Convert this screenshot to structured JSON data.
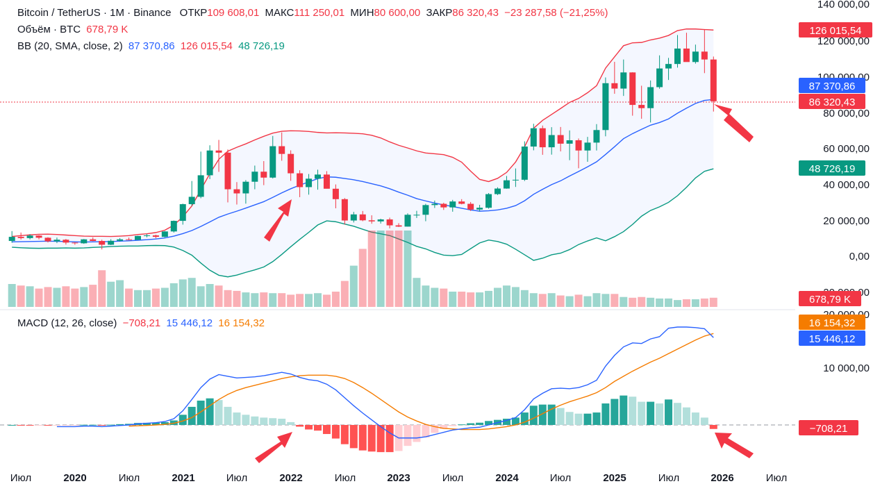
{
  "header": {
    "symbol": "Bitcoin / TetherUS · 1M · Binance",
    "open_label": "ОТКР",
    "open": "109 608,01",
    "high_label": "МАКС",
    "high": "111 250,01",
    "low_label": "МИН",
    "low": "80 600,00",
    "close_label": "ЗАКР",
    "close": "86 320,43",
    "change": "−23 287,58 (−21,25%)"
  },
  "volume_legend": {
    "label": "Объём · BTC",
    "value": "678,79 K"
  },
  "bb_legend": {
    "label": "BB (20, SMA, close, 2)",
    "basis": "87 370,86",
    "upper": "126 015,54",
    "lower": "48 726,19"
  },
  "macd_legend": {
    "label": "MACD (12, 26, close)",
    "hist": "−708,21",
    "macd": "15 446,12",
    "signal": "16 154,32"
  },
  "price_axis": [
    "140 000,00",
    "120 000,00",
    "100 000,00",
    "80 000,00",
    "60 000,00",
    "40 000,00",
    "20 000,00",
    "0,00",
    "−20 000,00"
  ],
  "macd_axis": [
    "20 000,00",
    "10 000,00"
  ],
  "price_tags": {
    "upper": "126 015,54",
    "basis": "87 370,86",
    "close": "86 320,43",
    "lower": "48 726,19",
    "volume": "678,79 K"
  },
  "macd_tags": {
    "signal": "16 154,32",
    "macd": "15 446,12",
    "hist": "−708,21"
  },
  "time_axis": [
    "Июл",
    "2020",
    "Июл",
    "2021",
    "Июл",
    "2022",
    "Июл",
    "2023",
    "Июл",
    "2024",
    "Июл",
    "2025",
    "Июл",
    "2026",
    "Июл"
  ],
  "colors": {
    "up": "#089981",
    "down": "#f23645",
    "bb_basis": "#2962ff",
    "bb_upper": "#f23645",
    "bb_lower": "#089981",
    "macd": "#2962ff",
    "signal": "#f57c00"
  },
  "chart_data": {
    "type": "candlestick",
    "title": "Bitcoin / TetherUS · 1M · Binance",
    "start": "2019-05",
    "ohlc": [
      [
        8500,
        14000,
        7500,
        10800
      ],
      [
        10800,
        13200,
        9300,
        10100
      ],
      [
        10100,
        12300,
        9400,
        11500
      ],
      [
        11500,
        11700,
        9400,
        10300
      ],
      [
        10300,
        10600,
        7700,
        8300
      ],
      [
        8300,
        10400,
        7300,
        9200
      ],
      [
        9200,
        9600,
        6500,
        7600
      ],
      [
        7600,
        7700,
        6400,
        7200
      ],
      [
        7200,
        9600,
        6900,
        9400
      ],
      [
        9400,
        10500,
        8400,
        8500
      ],
      [
        8500,
        9200,
        3800,
        6400
      ],
      [
        6400,
        9500,
        6200,
        8600
      ],
      [
        8600,
        10100,
        8100,
        9400
      ],
      [
        9400,
        10400,
        8900,
        9100
      ],
      [
        9100,
        11400,
        9000,
        11300
      ],
      [
        11300,
        12400,
        10500,
        11600
      ],
      [
        11600,
        12000,
        10000,
        10800
      ],
      [
        10800,
        14000,
        10500,
        13800
      ],
      [
        13800,
        19900,
        13200,
        19700
      ],
      [
        19700,
        29300,
        17600,
        29000
      ],
      [
        29000,
        41900,
        28100,
        33100
      ],
      [
        33100,
        58300,
        32300,
        45100
      ],
      [
        45100,
        61800,
        43000,
        58900
      ],
      [
        58900,
        64800,
        47000,
        57700
      ],
      [
        57700,
        59500,
        30000,
        37300
      ],
      [
        37300,
        41300,
        28800,
        35000
      ],
      [
        35000,
        42400,
        29300,
        41500
      ],
      [
        41500,
        50500,
        37300,
        47100
      ],
      [
        47100,
        53000,
        39600,
        43800
      ],
      [
        43800,
        67000,
        43300,
        61300
      ],
      [
        61300,
        69000,
        53200,
        57000
      ],
      [
        57000,
        59000,
        42000,
        46200
      ],
      [
        46200,
        47900,
        32900,
        38500
      ],
      [
        38500,
        45800,
        34300,
        43200
      ],
      [
        43200,
        48200,
        37100,
        45500
      ],
      [
        45500,
        47400,
        37700,
        37600
      ],
      [
        37600,
        40000,
        26700,
        31800
      ],
      [
        31800,
        32400,
        17600,
        19900
      ],
      [
        19900,
        24700,
        18800,
        23300
      ],
      [
        23300,
        25200,
        19500,
        20000
      ],
      [
        20000,
        22800,
        18100,
        19400
      ],
      [
        19400,
        20900,
        18200,
        20500
      ],
      [
        20500,
        21500,
        15500,
        17200
      ],
      [
        17200,
        18400,
        16300,
        16500
      ],
      [
        16500,
        23900,
        16500,
        23100
      ],
      [
        23100,
        25300,
        21300,
        23100
      ],
      [
        23100,
        29200,
        19500,
        28500
      ],
      [
        28500,
        31000,
        26900,
        29200
      ],
      [
        29200,
        29800,
        25800,
        27200
      ],
      [
        27200,
        31400,
        24800,
        30500
      ],
      [
        30500,
        31800,
        28900,
        29200
      ],
      [
        29200,
        30200,
        25200,
        26000
      ],
      [
        26000,
        28600,
        24900,
        27000
      ],
      [
        27000,
        35200,
        26500,
        34600
      ],
      [
        34600,
        38400,
        34100,
        37700
      ],
      [
        37700,
        44700,
        37600,
        42300
      ],
      [
        42300,
        48900,
        38600,
        42600
      ],
      [
        42600,
        64000,
        41900,
        61100
      ],
      [
        61100,
        73800,
        59000,
        71300
      ],
      [
        71300,
        72800,
        56500,
        60700
      ],
      [
        60700,
        71900,
        56600,
        67500
      ],
      [
        67500,
        72000,
        58400,
        62700
      ],
      [
        62700,
        70100,
        53500,
        64600
      ],
      [
        64600,
        65600,
        49000,
        58900
      ],
      [
        58900,
        66500,
        52600,
        63300
      ],
      [
        63300,
        73600,
        58900,
        70300
      ],
      [
        70300,
        99600,
        66800,
        96400
      ],
      [
        96400,
        108300,
        90500,
        93400
      ],
      [
        93400,
        109600,
        89300,
        102400
      ],
      [
        102400,
        102500,
        78300,
        84300
      ],
      [
        84300,
        95000,
        76600,
        82500
      ],
      [
        82500,
        97900,
        74500,
        94200
      ],
      [
        94200,
        111900,
        93300,
        104600
      ],
      [
        104600,
        110500,
        98200,
        107100
      ],
      [
        107100,
        123200,
        105100,
        115700
      ],
      [
        115700,
        124500,
        108800,
        108200
      ],
      [
        108200,
        117900,
        107300,
        114000
      ],
      [
        114000,
        126200,
        102000,
        109600
      ],
      [
        109600,
        111250,
        80600,
        86320
      ]
    ],
    "bb_basis": [
      8000,
      8100,
      8200,
      8300,
      8400,
      8300,
      8200,
      8000,
      7900,
      8000,
      8100,
      8200,
      8400,
      8600,
      8900,
      9200,
      9600,
      10200,
      11200,
      12600,
      14300,
      16600,
      19100,
      21700,
      23500,
      25100,
      26800,
      28600,
      30400,
      32800,
      35300,
      37600,
      39600,
      41400,
      43200,
      44200,
      44000,
      43300,
      42600,
      41600,
      40400,
      39200,
      37600,
      35700,
      34000,
      32100,
      30800,
      29600,
      28600,
      27700,
      26700,
      25800,
      25100,
      25300,
      25800,
      26700,
      28200,
      30900,
      34500,
      37300,
      39900,
      42000,
      44700,
      47200,
      49800,
      52600,
      56700,
      61000,
      65500,
      68300,
      70700,
      73000,
      74500,
      76500,
      79700,
      82500,
      85100,
      86800,
      87371
    ],
    "bb_upper": [
      11000,
      11500,
      11900,
      12200,
      12300,
      12100,
      11800,
      11500,
      11200,
      11100,
      11100,
      11000,
      11200,
      11500,
      12100,
      12500,
      13200,
      14500,
      17300,
      22000,
      28000,
      37000,
      46000,
      54000,
      58500,
      60700,
      62600,
      64800,
      66800,
      68600,
      69600,
      69900,
      69800,
      69500,
      69000,
      68700,
      68800,
      68700,
      68500,
      68200,
      67400,
      65900,
      63700,
      61800,
      60300,
      58700,
      57500,
      57100,
      56600,
      55100,
      52400,
      47400,
      42800,
      41600,
      43400,
      46700,
      52500,
      61000,
      71300,
      75700,
      79000,
      82300,
      85700,
      87900,
      91100,
      95000,
      104800,
      111100,
      117300,
      118900,
      119100,
      120500,
      121500,
      123000,
      125700,
      126600,
      126600,
      126300,
      126016
    ],
    "bb_lower": [
      5000,
      4700,
      4500,
      4400,
      4500,
      4500,
      4600,
      4500,
      4600,
      4900,
      5100,
      5400,
      5600,
      5700,
      5700,
      5900,
      6000,
      5900,
      5100,
      3200,
      600,
      -3800,
      -7800,
      -10600,
      -11500,
      -10500,
      -9000,
      -7600,
      -6000,
      -3000,
      1000,
      5300,
      9400,
      13300,
      17400,
      19700,
      19200,
      17900,
      16700,
      15000,
      13400,
      12500,
      11500,
      9600,
      7700,
      5500,
      4100,
      2100,
      600,
      300,
      1000,
      4200,
      7400,
      9000,
      8200,
      6700,
      3900,
      800,
      -2300,
      -1100,
      800,
      1700,
      3700,
      6500,
      8500,
      10200,
      8600,
      10900,
      13700,
      17700,
      22300,
      25500,
      27500,
      30000,
      33700,
      38400,
      43600,
      47300,
      48726
    ],
    "volume": [
      30,
      28,
      27,
      24,
      26,
      25,
      27,
      24,
      26,
      29,
      48,
      33,
      35,
      24,
      22,
      22,
      24,
      25,
      31,
      36,
      38,
      27,
      30,
      28,
      22,
      21,
      19,
      18,
      19,
      18,
      18,
      16,
      17,
      17,
      18,
      16,
      20,
      34,
      54,
      76,
      100,
      100,
      100,
      100,
      100,
      38,
      28,
      25,
      24,
      20,
      20,
      19,
      19,
      21,
      25,
      28,
      26,
      22,
      18,
      17,
      18,
      15,
      14,
      16,
      14,
      18,
      17,
      17,
      13,
      12,
      13,
      12,
      11,
      11,
      9,
      10,
      10,
      11,
      12
    ],
    "macd": [
      0,
      -100,
      -200,
      -200,
      -300,
      -300,
      -300,
      -300,
      -200,
      -200,
      -300,
      -200,
      -100,
      0,
      200,
      300,
      400,
      600,
      1100,
      2500,
      4500,
      6600,
      8100,
      8900,
      8600,
      8300,
      8400,
      8500,
      8700,
      9000,
      9300,
      9000,
      8400,
      8000,
      7800,
      7200,
      6200,
      4800,
      3400,
      2100,
      900,
      -300,
      -1400,
      -2300,
      -2300,
      -2300,
      -2100,
      -1700,
      -1300,
      -900,
      -700,
      -500,
      -400,
      0,
      400,
      800,
      1300,
      2700,
      4600,
      5600,
      6400,
      6500,
      6400,
      6600,
      7100,
      7900,
      10400,
      12300,
      13800,
      14500,
      14400,
      15200,
      15600,
      17100,
      17300,
      17300,
      17200,
      17000,
      15446
    ],
    "signal": [
      0,
      -50,
      -100,
      -150,
      -180,
      -200,
      -230,
      -240,
      -240,
      -240,
      -250,
      -250,
      -240,
      -200,
      -150,
      -80,
      0,
      100,
      300,
      700,
      1300,
      2300,
      3400,
      4500,
      5400,
      6100,
      6600,
      7000,
      7400,
      7800,
      8200,
      8500,
      8700,
      8800,
      8800,
      8800,
      8600,
      8200,
      7500,
      6600,
      5600,
      4500,
      3400,
      2300,
      1400,
      700,
      100,
      -300,
      -600,
      -700,
      -800,
      -800,
      -800,
      -700,
      -500,
      -300,
      0,
      500,
      1200,
      2000,
      2800,
      3500,
      4100,
      4600,
      5100,
      5700,
      6600,
      7700,
      8600,
      9500,
      10300,
      11100,
      11800,
      12600,
      13400,
      14200,
      15000,
      15700,
      16154
    ],
    "hist": [
      0,
      -50,
      -100,
      -50,
      -120,
      -100,
      -70,
      -60,
      40,
      40,
      -50,
      50,
      140,
      200,
      350,
      380,
      400,
      500,
      800,
      1800,
      3200,
      4300,
      4700,
      4400,
      3200,
      2200,
      1800,
      1500,
      1300,
      1200,
      1100,
      500,
      -300,
      -800,
      -1000,
      -1600,
      -2400,
      -3400,
      -4100,
      -4500,
      -4700,
      -4800,
      -4800,
      -4600,
      -3700,
      -3000,
      -2200,
      -1400,
      -700,
      -200,
      100,
      300,
      400,
      700,
      900,
      1100,
      1300,
      2200,
      3400,
      3600,
      3600,
      3000,
      2300,
      2000,
      2000,
      2200,
      3800,
      4600,
      5200,
      5000,
      4100,
      4100,
      3800,
      4500,
      3900,
      3100,
      2200,
      1300,
      -708
    ],
    "price_ylim": [
      -20000,
      140000
    ],
    "macd_ylim": [
      -5000,
      20000
    ]
  }
}
